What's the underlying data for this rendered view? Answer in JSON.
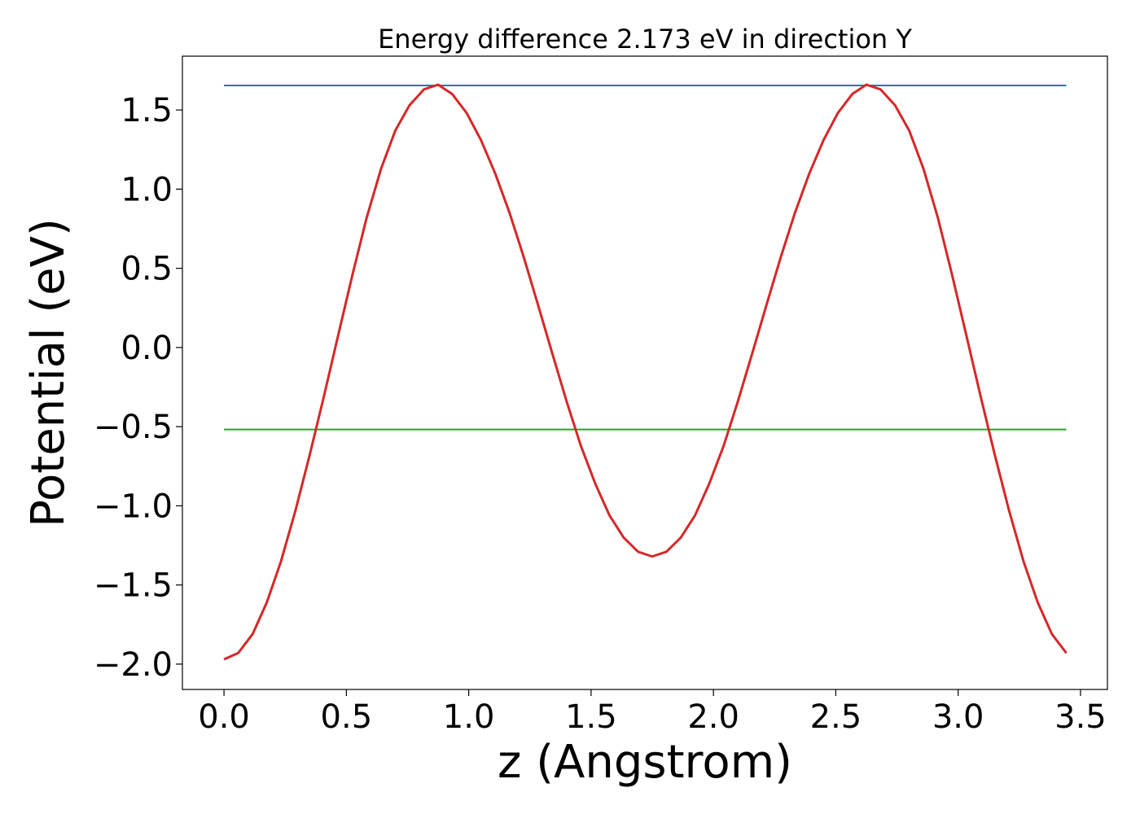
{
  "chart_data": {
    "type": "line",
    "title": "Energy difference 2.173 eV in direction Y",
    "xlabel": "z (Angstrom)",
    "ylabel": "Potential (eV)",
    "xlim": [
      -0.17,
      3.61
    ],
    "ylim": [
      -2.16,
      1.84
    ],
    "xticks": [
      0.0,
      0.5,
      1.0,
      1.5,
      2.0,
      2.5,
      3.0,
      3.5
    ],
    "xtick_labels": [
      "0.0",
      "0.5",
      "1.0",
      "1.5",
      "2.0",
      "2.5",
      "3.0",
      "3.5"
    ],
    "yticks": [
      -2.0,
      -1.5,
      -1.0,
      -0.5,
      0.0,
      0.5,
      1.0,
      1.5
    ],
    "ytick_labels": [
      "−2.0",
      "−1.5",
      "−1.0",
      "−0.5",
      "0.0",
      "0.5",
      "1.0",
      "1.5"
    ],
    "grid": false,
    "legend": "none",
    "colors": {
      "potential": "#d62728",
      "max_level": "#1f77b4",
      "average_level": "#2ca02c"
    },
    "series": [
      {
        "x": [
          0.0,
          0.058,
          0.117,
          0.175,
          0.233,
          0.292,
          0.35,
          0.408,
          0.467,
          0.525,
          0.583,
          0.642,
          0.7,
          0.758,
          0.817,
          0.875,
          0.933,
          0.992,
          1.05,
          1.108,
          1.167,
          1.225,
          1.283,
          1.342,
          1.4,
          1.458,
          1.517,
          1.575,
          1.633,
          1.692,
          1.75,
          1.808,
          1.867,
          1.925,
          1.983,
          2.042,
          2.1,
          2.158,
          2.217,
          2.275,
          2.333,
          2.392,
          2.45,
          2.508,
          2.567,
          2.625,
          2.683,
          2.742,
          2.8,
          2.858,
          2.917,
          2.975,
          3.033,
          3.092,
          3.15,
          3.208,
          3.267,
          3.325,
          3.383,
          3.442
        ],
        "values": [
          -1.97,
          -1.93,
          -1.81,
          -1.61,
          -1.35,
          -1.03,
          -0.68,
          -0.31,
          0.08,
          0.46,
          0.82,
          1.13,
          1.37,
          1.53,
          1.63,
          1.66,
          1.6,
          1.48,
          1.31,
          1.1,
          0.85,
          0.57,
          0.27,
          -0.04,
          -0.34,
          -0.62,
          -0.86,
          -1.06,
          -1.2,
          -1.29,
          -1.32,
          -1.29,
          -1.2,
          -1.06,
          -0.86,
          -0.62,
          -0.34,
          -0.04,
          0.27,
          0.57,
          0.85,
          1.1,
          1.31,
          1.48,
          1.6,
          1.66,
          1.63,
          1.53,
          1.37,
          1.13,
          0.82,
          0.46,
          0.08,
          -0.31,
          -0.68,
          -1.03,
          -1.35,
          -1.61,
          -1.81,
          -1.93
        ]
      },
      {
        "x": [
          0.0,
          3.442
        ],
        "values": [
          1.655,
          1.655
        ]
      },
      {
        "x": [
          0.0,
          3.442
        ],
        "values": [
          -0.518,
          -0.518
        ]
      }
    ]
  }
}
